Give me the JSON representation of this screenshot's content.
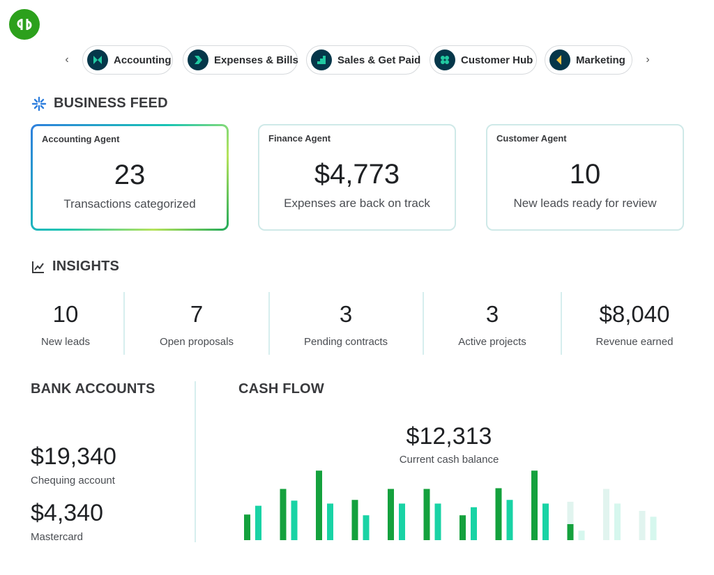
{
  "nav": {
    "chips": [
      {
        "label": "Accounting",
        "icon": "accounting-icon"
      },
      {
        "label": "Expenses & Bills",
        "icon": "expenses-icon"
      },
      {
        "label": "Sales & Get Paid",
        "icon": "sales-icon"
      },
      {
        "label": "Customer Hub",
        "icon": "customer-hub-icon"
      },
      {
        "label": "Marketing",
        "icon": "marketing-icon"
      }
    ]
  },
  "business_feed": {
    "title": "BUSINESS FEED",
    "cards": [
      {
        "agent": "Accounting Agent",
        "value": "23",
        "description": "Transactions categorized"
      },
      {
        "agent": "Finance Agent",
        "value": "$4,773",
        "description": "Expenses are back on track"
      },
      {
        "agent": "Customer Agent",
        "value": "10",
        "description": "New leads ready for review"
      }
    ]
  },
  "insights": {
    "title": "INSIGHTS",
    "items": [
      {
        "value": "10",
        "label": "New leads"
      },
      {
        "value": "7",
        "label": "Open proposals"
      },
      {
        "value": "3",
        "label": "Pending contracts"
      },
      {
        "value": "3",
        "label": "Active projects"
      },
      {
        "value": "$8,040",
        "label": "Revenue earned"
      }
    ]
  },
  "bank_accounts": {
    "title": "BANK ACCOUNTS",
    "accounts": [
      {
        "balance": "$19,340",
        "name": "Chequing account"
      },
      {
        "balance": "$4,340",
        "name": "Mastercard"
      }
    ]
  },
  "cash_flow": {
    "title": "CASH FLOW",
    "balance": "$12,313",
    "balance_label": "Current cash balance"
  },
  "chart_data": {
    "type": "bar",
    "title": "CASH FLOW",
    "categories": [
      "1",
      "2",
      "3",
      "4",
      "5",
      "6",
      "7",
      "8",
      "9",
      "10",
      "11",
      "12"
    ],
    "series": [
      {
        "values": [
          35,
          70,
          95,
          55,
          70,
          70,
          34,
          71,
          95,
          22,
          70,
          40
        ]
      },
      {
        "values": [
          47,
          54,
          50,
          34,
          50,
          50,
          45,
          55,
          50,
          13,
          50,
          32
        ]
      }
    ],
    "projected_from_index": 9,
    "ylim": [
      0,
      100
    ],
    "colors": {
      "series1": "#14a13d",
      "series2": "#19d3a5",
      "projected1": "#e1f4ef",
      "projected2": "#d6f7ee"
    }
  },
  "colors": {
    "brand": "#2ca01c",
    "chip_icon_bg": "#05374a",
    "divider": "#d6eeee"
  }
}
